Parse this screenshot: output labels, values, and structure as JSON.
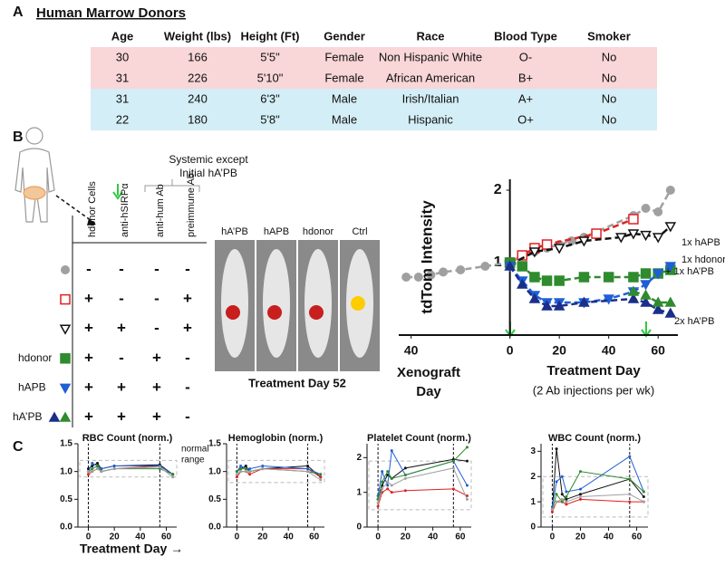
{
  "panel_labels": {
    "a": "A",
    "b": "B",
    "c": "C"
  },
  "table": {
    "title": "Human Marrow Donors",
    "columns": [
      "Age",
      "Weight (lbs)",
      "Height (Ft)",
      "Gender",
      "Race",
      "Blood Type",
      "Smoker"
    ],
    "rows": [
      [
        "30",
        "166",
        "5'5\"",
        "Female",
        "Non Hispanic White",
        "O-",
        "No"
      ],
      [
        "31",
        "226",
        "5'10\"",
        "Female",
        "African American",
        "B+",
        "No"
      ],
      [
        "31",
        "240",
        "6'3\"",
        "Male",
        "Irish/Italian",
        "A+",
        "No"
      ],
      [
        "22",
        "180",
        "5'8\"",
        "Male",
        "Hispanic",
        "O+",
        "No"
      ]
    ]
  },
  "treatment_matrix": {
    "bracket_label": [
      "Systemic except",
      "Initial hA’PB"
    ],
    "columns": [
      "hdonor Cells",
      "anti-hSIRPα",
      "anti-hum Ab",
      "preimmune Ab"
    ],
    "rows": [
      {
        "cells": [
          "-",
          "-",
          "-",
          "-"
        ]
      },
      {
        "cells": [
          "+",
          "-",
          "-",
          "+"
        ]
      },
      {
        "cells": [
          "+",
          "+",
          "-",
          "+"
        ]
      },
      {
        "label": "hdonor",
        "cells": [
          "+",
          "-",
          "+",
          "-"
        ]
      },
      {
        "label": "hAPB",
        "cells": [
          "+",
          "+",
          "+",
          "-"
        ]
      },
      {
        "label": "hA’PB",
        "cells": [
          "+",
          "+",
          "+",
          "-"
        ]
      }
    ]
  },
  "imaging": {
    "labels": [
      "hA’PB",
      "hAPB",
      "hdonor",
      "Ctrl"
    ],
    "caption": "Treatment Day 52"
  },
  "chart_data": [
    {
      "type": "line",
      "ylabel": "tdTom Intensity",
      "xlabel": "Treatment Day",
      "xlabel_note": "(2 Ab injections per wk)",
      "xenograft_label": [
        "Xenograft",
        "Day"
      ],
      "annotations": [
        "1x hAPB",
        "1x hdonor",
        "+ 1x hA’PB",
        "2x hA’PB"
      ],
      "xlim": [
        -45,
        68
      ],
      "ylim": [
        0,
        2.15
      ],
      "xticks": [
        {
          "value": -40,
          "label": "40"
        },
        0,
        20,
        40,
        60
      ],
      "yticks": [
        1,
        2
      ],
      "series": [
        {
          "color": "#a0a0a0",
          "marker": "circle",
          "x": [
            -42,
            -37,
            -32,
            -27,
            -20,
            -10,
            0,
            5,
            10,
            15,
            20,
            25,
            30,
            50,
            55,
            60,
            65
          ],
          "values": [
            0.8,
            0.8,
            0.83,
            0.87,
            0.9,
            0.95,
            1.0,
            1.1,
            1.15,
            1.2,
            1.25,
            1.3,
            1.35,
            1.65,
            1.75,
            1.7,
            2.0
          ]
        },
        {
          "color": "#e02020",
          "marker": "square-open",
          "x": [
            0,
            5,
            10,
            15,
            35,
            50
          ],
          "values": [
            1.0,
            1.1,
            1.2,
            1.25,
            1.4,
            1.6
          ]
        },
        {
          "color": "#111111",
          "marker": "tri-down-open",
          "x": [
            0,
            10,
            20,
            30,
            45,
            50,
            55,
            60,
            65
          ],
          "values": [
            0.97,
            1.15,
            1.2,
            1.3,
            1.35,
            1.4,
            1.38,
            1.35,
            1.5
          ]
        },
        {
          "name": "1x hdonor",
          "color": "#2e8b2e",
          "marker": "square",
          "x": [
            0,
            5,
            10,
            15,
            20,
            30,
            40,
            50,
            55,
            60,
            65
          ],
          "values": [
            1.0,
            0.95,
            0.8,
            0.75,
            0.75,
            0.8,
            0.8,
            0.8,
            0.85,
            0.85,
            0.9
          ]
        },
        {
          "name": "1x hAPB",
          "color": "#1f5fd6",
          "marker": "tri-down",
          "x": [
            0,
            5,
            10,
            15,
            20,
            30,
            40,
            50,
            55,
            60,
            65
          ],
          "values": [
            0.95,
            0.75,
            0.55,
            0.45,
            0.45,
            0.45,
            0.5,
            0.6,
            0.7,
            0.85,
            0.95
          ]
        },
        {
          "name": "2x hA’PB",
          "color": "#1a2f8a",
          "marker": "tri-up",
          "x": [
            0,
            5,
            10,
            15,
            20,
            30,
            50,
            55,
            60,
            65
          ],
          "values": [
            0.95,
            0.7,
            0.5,
            0.4,
            0.4,
            0.45,
            0.5,
            0.45,
            0.35,
            0.3
          ]
        },
        {
          "name": "+ 1x hA’PB",
          "color": "#2e8b2e",
          "marker": "tri-up",
          "x": [
            50,
            55,
            60,
            65
          ],
          "values": [
            0.6,
            0.55,
            0.45,
            0.45
          ]
        }
      ]
    },
    {
      "type": "line",
      "title": "RBC Count (norm.)",
      "annotations": [
        "normal",
        "range"
      ],
      "xlim": [
        -8,
        68
      ],
      "ylim": [
        0,
        1.5
      ],
      "xticks": [
        0,
        20,
        40,
        60
      ],
      "yticks": [
        {
          "value": 0,
          "label": "0.0"
        },
        {
          "value": 0.5,
          "label": "0.5"
        },
        {
          "value": 1,
          "label": "1.0"
        },
        {
          "value": 1.5,
          "label": "1.5"
        }
      ],
      "normal_range": [
        0.9,
        1.2
      ],
      "vlines": [
        0,
        55
      ],
      "x": [
        0,
        3,
        7,
        10,
        20,
        55,
        65
      ],
      "series": [
        {
          "color": "#111111",
          "values": [
            1.05,
            1.1,
            1.15,
            1.05,
            1.1,
            1.12,
            0.95
          ]
        },
        {
          "color": "#e02020",
          "values": [
            0.95,
            1.0,
            1.05,
            1.0,
            1.05,
            1.1,
            0.95
          ]
        },
        {
          "color": "#1f5fd6",
          "values": [
            1.0,
            1.15,
            1.1,
            1.05,
            1.1,
            1.1,
            0.95
          ]
        },
        {
          "color": "#2e8b2e",
          "values": [
            1.0,
            1.05,
            1.1,
            1.0,
            1.05,
            1.05,
            0.95
          ]
        },
        {
          "color": "#a0a0a0",
          "values": [
            1.0,
            1.0,
            1.05,
            1.0,
            1.05,
            1.08,
            0.9
          ]
        }
      ]
    },
    {
      "type": "line",
      "title": "Hemoglobin (norm.)",
      "xlim": [
        -8,
        68
      ],
      "ylim": [
        0,
        1.5
      ],
      "xticks": [
        0,
        20,
        40,
        60
      ],
      "yticks": [
        {
          "value": 0,
          "label": "0.0"
        },
        {
          "value": 0.5,
          "label": "0.5"
        },
        {
          "value": 1,
          "label": "1.0"
        },
        {
          "value": 1.5,
          "label": "1.5"
        }
      ],
      "normal_range": [
        0.8,
        1.2
      ],
      "vlines": [
        0,
        55
      ],
      "x": [
        0,
        3,
        7,
        10,
        20,
        55,
        65
      ],
      "series": [
        {
          "color": "#111111",
          "values": [
            1.0,
            1.05,
            1.1,
            1.0,
            1.05,
            1.1,
            0.9
          ]
        },
        {
          "color": "#e02020",
          "values": [
            0.9,
            1.0,
            1.0,
            0.95,
            1.05,
            1.05,
            0.9
          ]
        },
        {
          "color": "#1f5fd6",
          "values": [
            1.0,
            1.1,
            1.05,
            1.05,
            1.1,
            1.05,
            0.95
          ]
        },
        {
          "color": "#2e8b2e",
          "values": [
            1.0,
            1.05,
            1.05,
            1.0,
            1.05,
            1.0,
            0.95
          ]
        },
        {
          "color": "#a0a0a0",
          "values": [
            0.95,
            1.0,
            1.0,
            1.0,
            1.05,
            1.0,
            0.85
          ]
        }
      ]
    },
    {
      "type": "line",
      "title": "Platelet Count (norm.)",
      "xlim": [
        -8,
        68
      ],
      "ylim": [
        0,
        2.4
      ],
      "xticks": [
        0,
        20,
        40,
        60
      ],
      "yticks": [
        0,
        1,
        2
      ],
      "normal_range": [
        0.5,
        1.9
      ],
      "vlines": [
        0,
        55
      ],
      "x": [
        0,
        3,
        7,
        10,
        20,
        55,
        65
      ],
      "series": [
        {
          "color": "#111111",
          "values": [
            0.8,
            1.2,
            1.5,
            1.4,
            1.7,
            1.95,
            1.9
          ]
        },
        {
          "color": "#e02020",
          "values": [
            0.6,
            1.0,
            1.1,
            1.0,
            1.05,
            1.1,
            0.9
          ]
        },
        {
          "color": "#1f5fd6",
          "values": [
            0.9,
            1.6,
            1.2,
            2.2,
            1.5,
            1.9,
            1.2
          ]
        },
        {
          "color": "#2e8b2e",
          "values": [
            0.8,
            1.3,
            1.6,
            1.4,
            1.5,
            1.9,
            2.3
          ]
        },
        {
          "color": "#a0a0a0",
          "values": [
            0.7,
            1.1,
            1.3,
            1.2,
            1.4,
            1.7,
            0.8
          ]
        }
      ]
    },
    {
      "type": "line",
      "title": "WBC Count (norm.)",
      "xlim": [
        -8,
        68
      ],
      "ylim": [
        0,
        3.3
      ],
      "xticks": [
        0,
        20,
        40,
        60
      ],
      "yticks": [
        0,
        1,
        2,
        3
      ],
      "normal_range": [
        0.4,
        2.0
      ],
      "vlines": [
        0,
        55
      ],
      "x": [
        0,
        3,
        7,
        10,
        20,
        55,
        65
      ],
      "series": [
        {
          "color": "#111111",
          "values": [
            0.7,
            3.1,
            1.3,
            1.1,
            1.3,
            1.9,
            1.2
          ]
        },
        {
          "color": "#e02020",
          "values": [
            0.6,
            1.0,
            1.0,
            0.9,
            1.1,
            1.0,
            1.0
          ]
        },
        {
          "color": "#1f5fd6",
          "values": [
            0.8,
            1.8,
            2.0,
            1.4,
            1.5,
            2.8,
            1.4
          ]
        },
        {
          "color": "#2e8b2e",
          "values": [
            0.7,
            1.3,
            1.0,
            1.2,
            2.2,
            1.9,
            1.4
          ]
        },
        {
          "color": "#a0a0a0",
          "values": [
            0.7,
            1.0,
            1.1,
            1.0,
            1.2,
            1.3,
            1.0
          ]
        }
      ]
    }
  ],
  "panel_c_xlabel": "Treatment Day →"
}
